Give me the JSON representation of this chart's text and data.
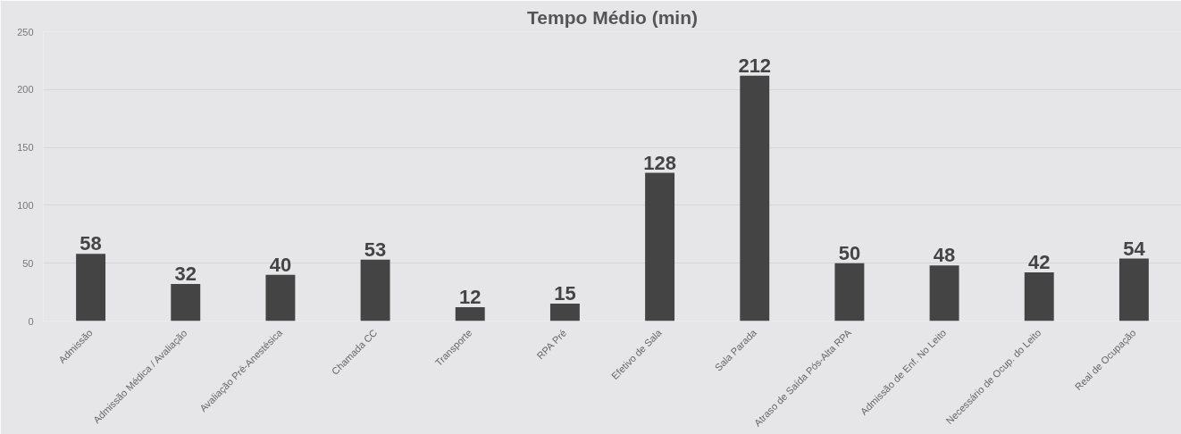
{
  "chart_data": {
    "type": "bar",
    "title": "Tempo Médio (min)",
    "categories": [
      "Admissão",
      "Admissão Médica / Avaliação",
      "Avaliação Pré-Anestésica",
      "Chamada CC",
      "Transporte",
      "RPA Pré",
      "Efetivo de Sala",
      "Sala Parada",
      "Atraso de Saída Pós-Alta RPA",
      "Admissão de Enf. No Leito",
      "Necessário de Ocup. do Leito",
      "Real de Ocupação"
    ],
    "values": [
      58,
      32,
      40,
      53,
      12,
      15,
      128,
      212,
      50,
      48,
      42,
      54
    ],
    "color": "#444444",
    "ylim": [
      0,
      250
    ],
    "yticks": [
      0,
      50,
      100,
      150,
      200,
      250
    ],
    "grid": "y",
    "data_labels": true
  }
}
